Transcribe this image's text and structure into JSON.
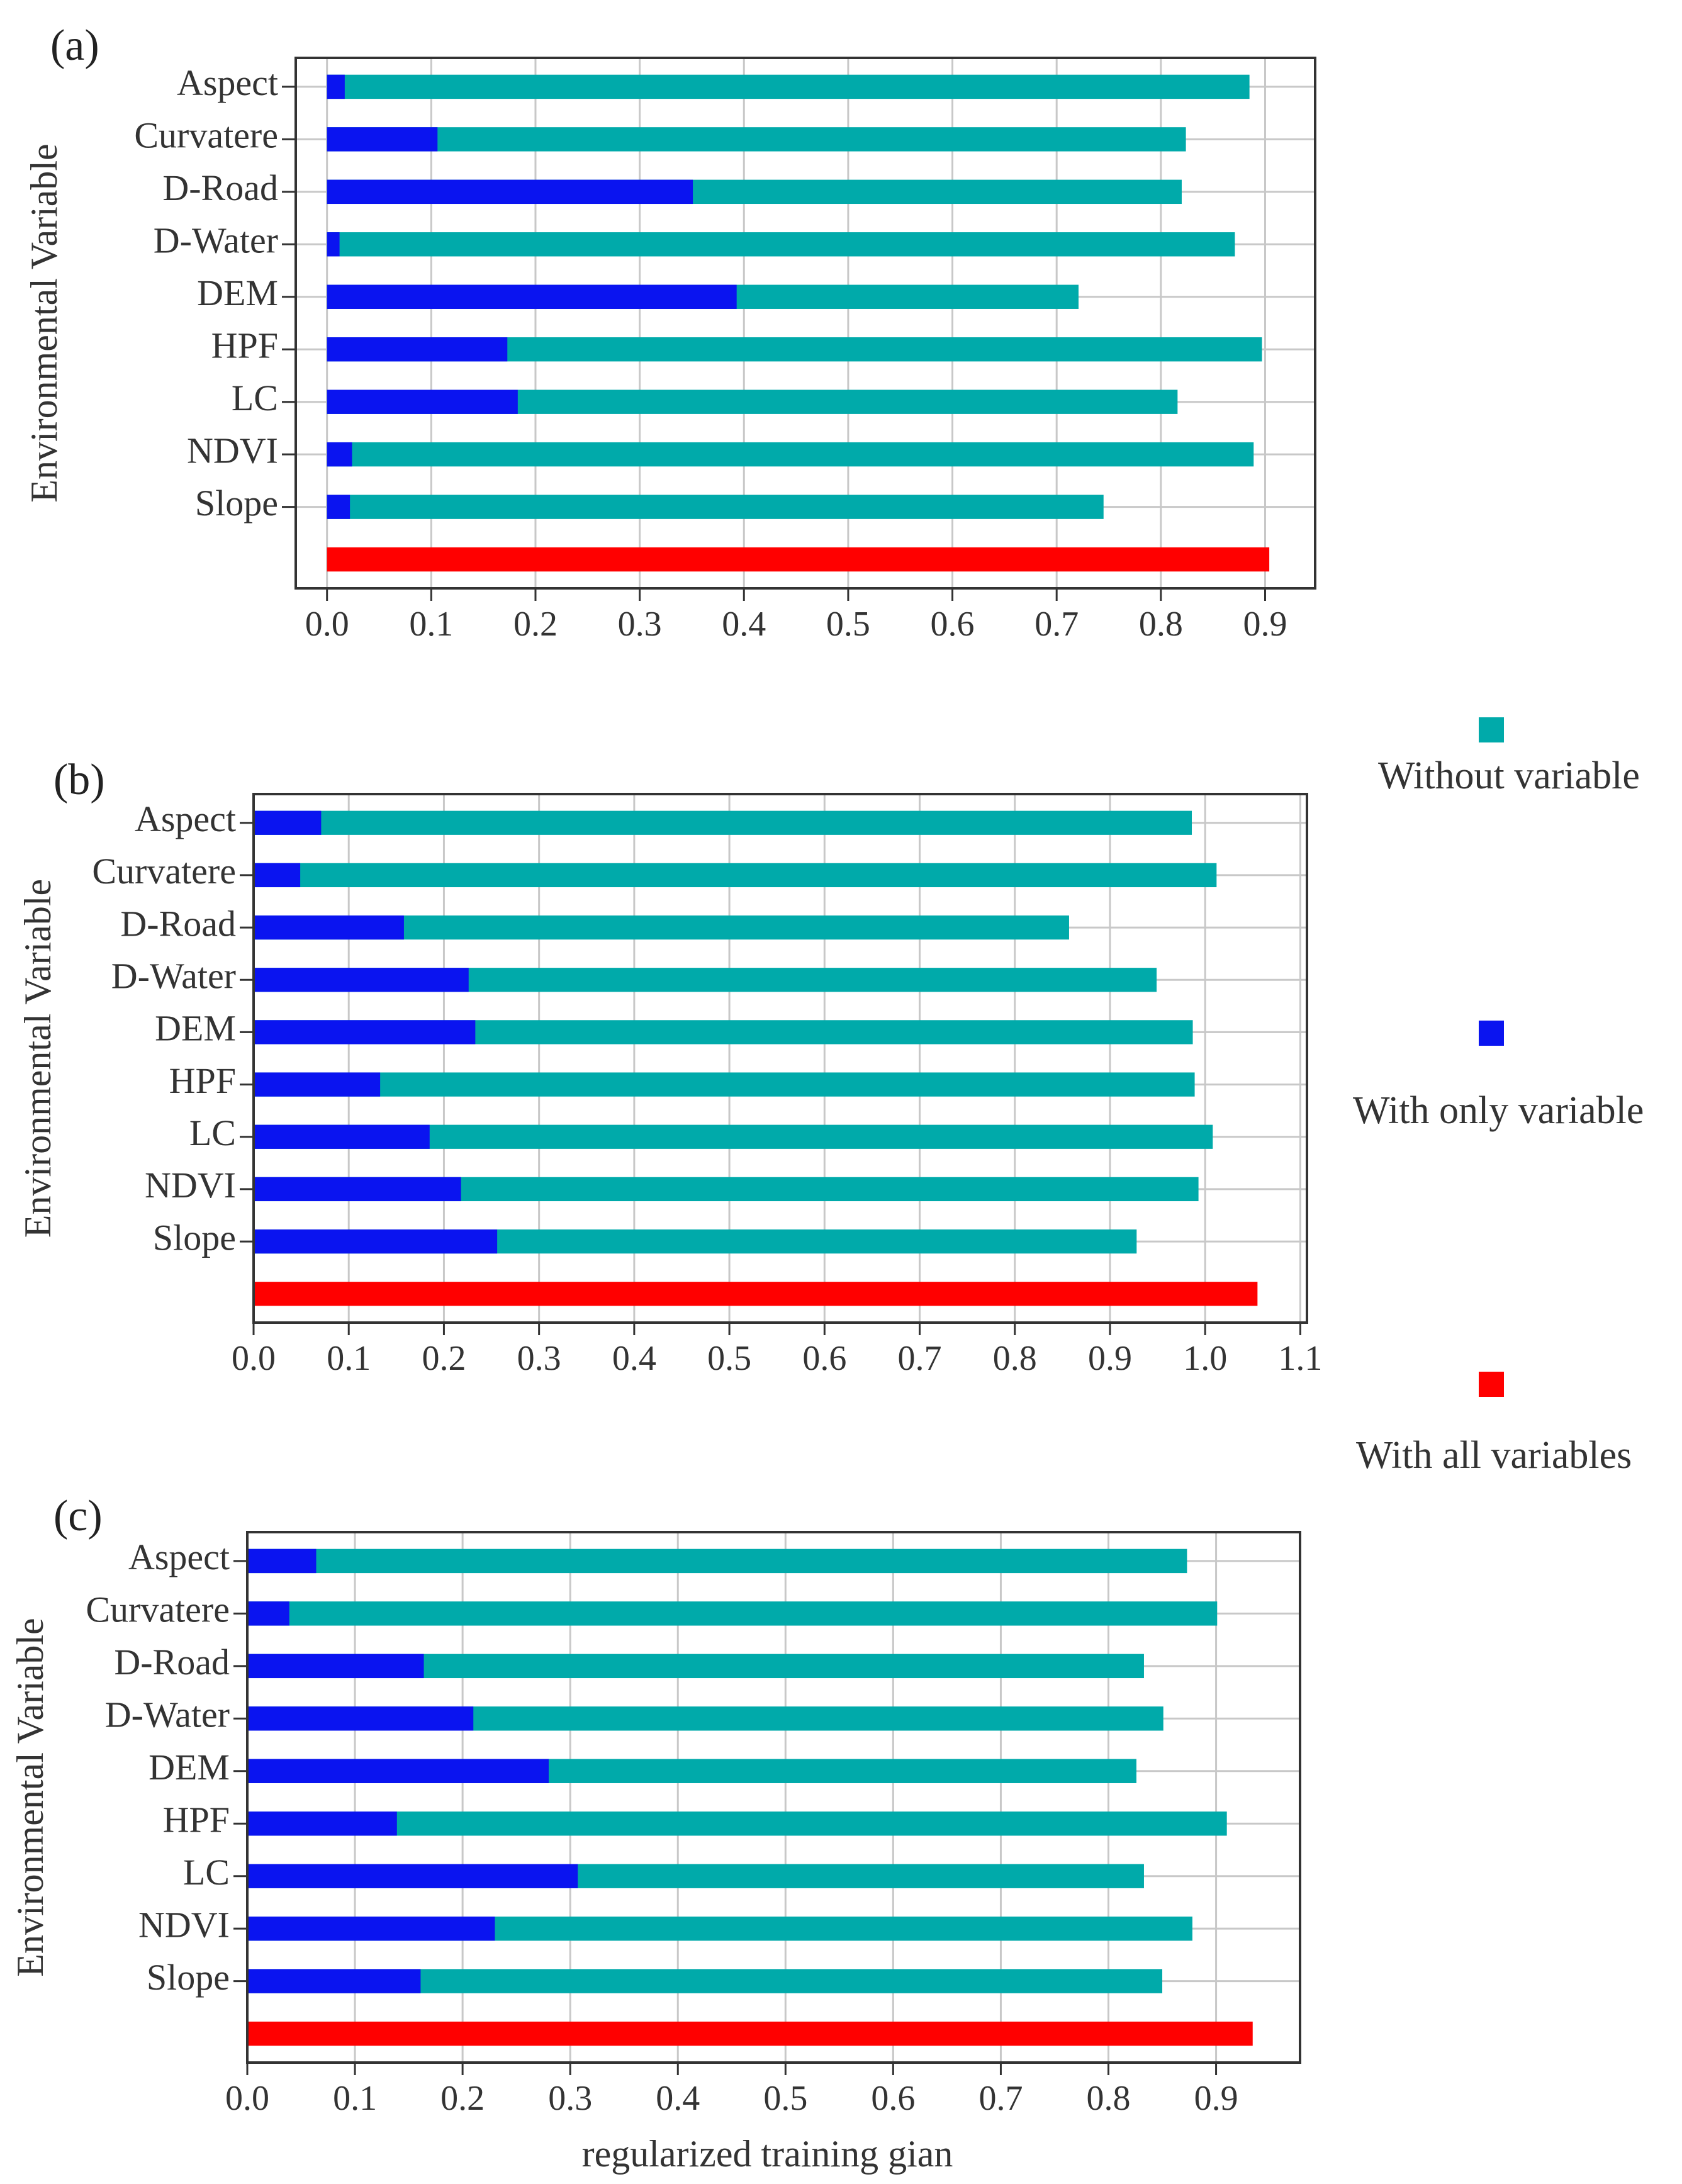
{
  "figure": {
    "panels": [
      "(a)",
      "(b)",
      "(c)"
    ],
    "ylabel": "Environmental Variable",
    "xlabel": "regularized training gian"
  },
  "legend": {
    "items": [
      {
        "label": "Without variable",
        "color": "#00AAAA"
      },
      {
        "label": "With only variable",
        "color": "#0A14F0"
      },
      {
        "label": "With all variables",
        "color": "#FF0000"
      }
    ]
  },
  "chart_data": [
    {
      "type": "bar",
      "orientation": "horizontal",
      "panel": "(a)",
      "categories": [
        "Aspect",
        "Curvatere",
        "D-Road",
        "D-Water",
        "DEM",
        "HPF",
        "LC",
        "NDVI",
        "Slope"
      ],
      "series": [
        {
          "name": "Without variable",
          "color": "#00AAAA",
          "values": [
            0.885,
            0.824,
            0.82,
            0.871,
            0.721,
            0.897,
            0.816,
            0.889,
            0.745
          ]
        },
        {
          "name": "With only variable",
          "color": "#0A14F0",
          "values": [
            0.017,
            0.106,
            0.351,
            0.012,
            0.393,
            0.173,
            0.183,
            0.024,
            0.022
          ]
        }
      ],
      "all_variables": {
        "name": "With all variables",
        "color": "#FF0000",
        "value": 0.904
      },
      "xlim": [
        -0.03,
        0.948
      ],
      "xticks": [
        "0.0",
        "0.1",
        "0.2",
        "0.3",
        "0.4",
        "0.5",
        "0.6",
        "0.7",
        "0.8",
        "0.9"
      ],
      "ylabel": "Environmental Variable",
      "xlabel": ""
    },
    {
      "type": "bar",
      "orientation": "horizontal",
      "panel": "(b)",
      "categories": [
        "Aspect",
        "Curvatere",
        "D-Road",
        "D-Water",
        "DEM",
        "HPF",
        "LC",
        "NDVI",
        "Slope"
      ],
      "series": [
        {
          "name": "Without variable",
          "color": "#00AAAA",
          "values": [
            0.986,
            1.012,
            0.857,
            0.949,
            0.987,
            0.989,
            1.008,
            0.993,
            0.928
          ]
        },
        {
          "name": "With only variable",
          "color": "#0A14F0",
          "values": [
            0.071,
            0.049,
            0.158,
            0.226,
            0.233,
            0.133,
            0.185,
            0.218,
            0.256
          ]
        }
      ],
      "all_variables": {
        "name": "With all variables",
        "color": "#FF0000",
        "value": 1.055
      },
      "xlim": [
        0.0,
        1.107
      ],
      "xticks": [
        "0.0",
        "0.1",
        "0.2",
        "0.3",
        "0.4",
        "0.5",
        "0.6",
        "0.7",
        "0.8",
        "0.9",
        "1.0",
        "1.1"
      ],
      "ylabel": "Environmental Variable",
      "xlabel": ""
    },
    {
      "type": "bar",
      "orientation": "horizontal",
      "panel": "(c)",
      "categories": [
        "Aspect",
        "Curvatere",
        "D-Road",
        "D-Water",
        "DEM",
        "HPF",
        "LC",
        "NDVI",
        "Slope"
      ],
      "series": [
        {
          "name": "Without variable",
          "color": "#00AAAA",
          "values": [
            0.873,
            0.901,
            0.833,
            0.851,
            0.826,
            0.91,
            0.833,
            0.878,
            0.85
          ]
        },
        {
          "name": "With only variable",
          "color": "#0A14F0",
          "values": [
            0.064,
            0.039,
            0.164,
            0.21,
            0.28,
            0.139,
            0.307,
            0.23,
            0.161
          ]
        }
      ],
      "all_variables": {
        "name": "With all variables",
        "color": "#FF0000",
        "value": 0.934
      },
      "xlim": [
        0.0,
        0.978
      ],
      "xticks": [
        "0.0",
        "0.1",
        "0.2",
        "0.3",
        "0.4",
        "0.5",
        "0.6",
        "0.7",
        "0.8",
        "0.9"
      ],
      "ylabel": "Environmental Variable",
      "xlabel": "regularized training gian"
    }
  ]
}
